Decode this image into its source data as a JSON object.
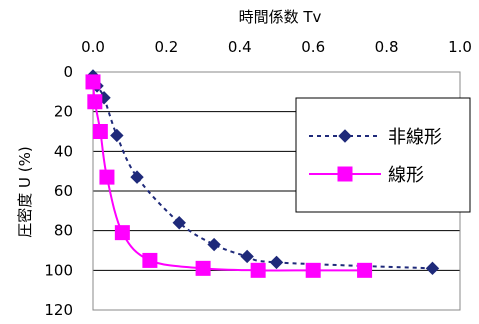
{
  "chart_data": {
    "type": "line",
    "title": "",
    "xlabel": "時間係数 Tv",
    "ylabel": "圧密度 U (%)",
    "x_axis_position": "top",
    "y_inverted": true,
    "xlim": [
      0,
      1.0
    ],
    "ylim": [
      0,
      120
    ],
    "x_ticks": [
      "0.0",
      "0.2",
      "0.4",
      "0.6",
      "0.8",
      "1.0"
    ],
    "y_ticks": [
      "0",
      "20",
      "40",
      "60",
      "80",
      "100",
      "120"
    ],
    "grid": "horizontal",
    "legend_position": "right",
    "series": [
      {
        "name": "非線形",
        "color": "#1f2a7a",
        "line_style": "dotted",
        "marker": "diamond",
        "points": [
          [
            0.0,
            2
          ],
          [
            0.011,
            7
          ],
          [
            0.03,
            13
          ],
          [
            0.065,
            32
          ],
          [
            0.12,
            53
          ],
          [
            0.235,
            76
          ],
          [
            0.33,
            87
          ],
          [
            0.42,
            93
          ],
          [
            0.5,
            96
          ],
          [
            0.925,
            99
          ]
        ]
      },
      {
        "name": "線形",
        "color": "#ff00ff",
        "line_style": "solid",
        "marker": "square",
        "points": [
          [
            0.0,
            5
          ],
          [
            0.005,
            15
          ],
          [
            0.02,
            30
          ],
          [
            0.038,
            53
          ],
          [
            0.08,
            81
          ],
          [
            0.155,
            95
          ],
          [
            0.3,
            99
          ],
          [
            0.45,
            100
          ],
          [
            0.6,
            100
          ],
          [
            0.74,
            100
          ]
        ]
      }
    ]
  }
}
